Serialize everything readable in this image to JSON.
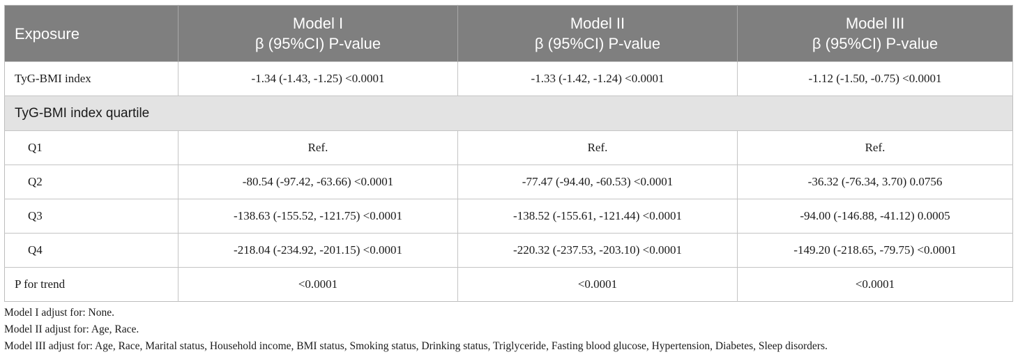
{
  "table": {
    "header": {
      "exposure": "Exposure",
      "models": [
        {
          "name": "Model I",
          "subtitle": "β (95%CI) P-value"
        },
        {
          "name": "Model II",
          "subtitle": "β (95%CI) P-value"
        },
        {
          "name": "Model III",
          "subtitle": "β (95%CI) P-value"
        }
      ]
    },
    "index_row": {
      "label": "TyG-BMI index",
      "values": [
        "-1.34 (-1.43, -1.25) <0.0001",
        "-1.33 (-1.42, -1.24) <0.0001",
        "-1.12 (-1.50, -0.75) <0.0001"
      ]
    },
    "section_label": "TyG-BMI index quartile",
    "quartiles": [
      {
        "label": "Q1",
        "values": [
          "Ref.",
          "Ref.",
          "Ref."
        ]
      },
      {
        "label": "Q2",
        "values": [
          "-80.54 (-97.42, -63.66) <0.0001",
          "-77.47 (-94.40, -60.53) <0.0001",
          "-36.32 (-76.34, 3.70) 0.0756"
        ]
      },
      {
        "label": "Q3",
        "values": [
          "-138.63 (-155.52, -121.75) <0.0001",
          "-138.52 (-155.61, -121.44) <0.0001",
          "-94.00 (-146.88, -41.12) 0.0005"
        ]
      },
      {
        "label": "Q4",
        "values": [
          "-218.04 (-234.92, -201.15) <0.0001",
          "-220.32 (-237.53, -203.10) <0.0001",
          "-149.20 (-218.65, -79.75) <0.0001"
        ]
      }
    ],
    "trend_row": {
      "label": "P for trend",
      "values": [
        "<0.0001",
        "<0.0001",
        "<0.0001"
      ]
    }
  },
  "footnotes": [
    "Model I adjust for: None.",
    "Model II adjust for: Age, Race.",
    "Model III adjust for: Age, Race, Marital status, Household income, BMI status, Smoking status, Drinking status, Triglyceride, Fasting blood glucose, Hypertension, Diabetes, Sleep disorders."
  ],
  "colors": {
    "header_bg": "#7f7f7f",
    "header_text": "#ffffff",
    "section_bg": "#e3e3e3",
    "border": "#c4c4c4"
  }
}
